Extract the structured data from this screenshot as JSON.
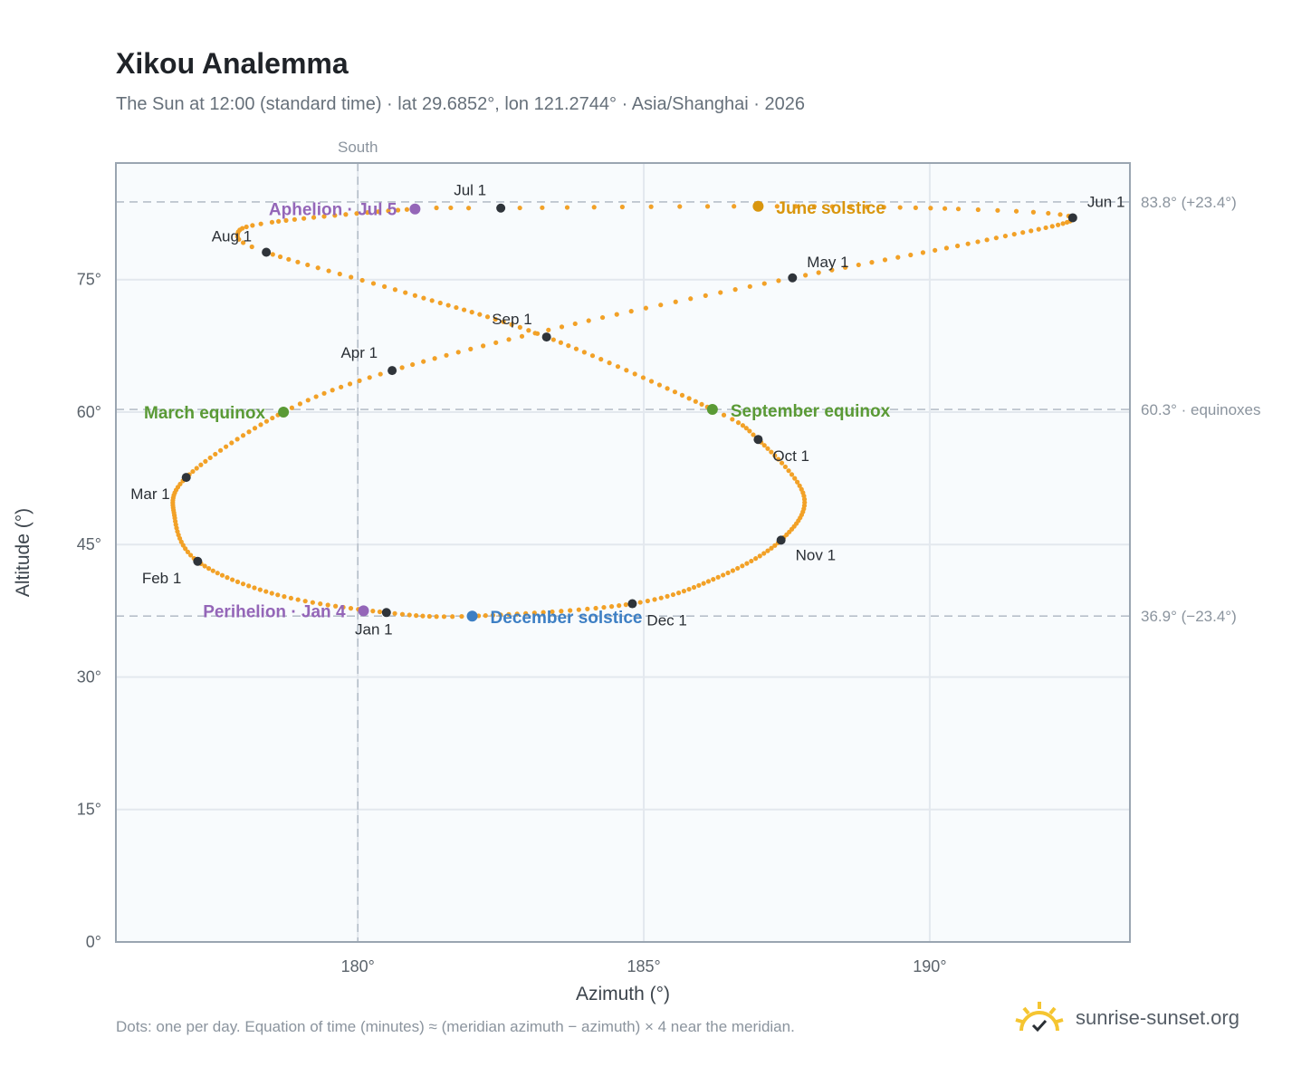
{
  "header": {
    "title": "Xikou Analemma",
    "subtitle": "The Sun at 12:00 (standard time) · lat 29.6852°, lon 121.2744° · Asia/Shanghai · 2026"
  },
  "footer": {
    "note": "Dots: one per day. Equation of time (minutes) ≈ (meridian azimuth − azimuth) × 4 near the meridian.",
    "brand": "sunrise-sunset.org"
  },
  "colors": {
    "curve": "#f2a127",
    "month_marker": "#2f343a",
    "march_sept": "#5a9a35",
    "june": "#d9960e",
    "december": "#3d7fc4",
    "apsis": "#9466b8",
    "plot_bg": "#f8fbfd",
    "grid": "#e3e8ee",
    "frame": "#9aa5b1"
  },
  "chart_data": {
    "type": "scatter",
    "title": "Xikou Analemma",
    "xlabel": "Azimuth (°)",
    "ylabel": "Altitude (°)",
    "xlim": [
      175.77,
      193.5
    ],
    "ylim": [
      0,
      88.2
    ],
    "x_ticks": [
      180,
      185,
      190
    ],
    "x_tick_labels": [
      "180°",
      "185°",
      "190°"
    ],
    "y_ticks": [
      0,
      15,
      30,
      45,
      60,
      75
    ],
    "y_tick_labels": [
      "0°",
      "15°",
      "30°",
      "45°",
      "60°",
      "75°"
    ],
    "grid": true,
    "meridian": {
      "azimuth": 180,
      "label": "South"
    },
    "reference_lines": [
      {
        "altitude": 83.8,
        "label": "83.8° (+23.4°)"
      },
      {
        "altitude": 60.3,
        "label": "60.3° · equinoxes"
      },
      {
        "altitude": 36.9,
        "label": "36.9° (−23.4°)"
      }
    ],
    "month_markers": [
      {
        "label": "Jan 1",
        "az": 180.5,
        "alt": 37.3
      },
      {
        "label": "Feb 1",
        "az": 177.2,
        "alt": 43.1
      },
      {
        "label": "Mar 1",
        "az": 177.0,
        "alt": 52.6
      },
      {
        "label": "Apr 1",
        "az": 180.6,
        "alt": 64.7
      },
      {
        "label": "May 1",
        "az": 187.6,
        "alt": 75.2
      },
      {
        "label": "Jun 1",
        "az": 192.5,
        "alt": 82.0
      },
      {
        "label": "Jul 1",
        "az": 182.5,
        "alt": 83.1
      },
      {
        "label": "Aug 1",
        "az": 178.4,
        "alt": 78.1
      },
      {
        "label": "Sep 1",
        "az": 183.3,
        "alt": 68.5
      },
      {
        "label": "Oct 1",
        "az": 187.0,
        "alt": 56.9
      },
      {
        "label": "Nov 1",
        "az": 187.4,
        "alt": 45.5
      },
      {
        "label": "Dec 1",
        "az": 184.8,
        "alt": 38.3
      }
    ],
    "events": [
      {
        "label": "March equinox",
        "az": 178.7,
        "alt": 60.0,
        "color": "#5a9a35"
      },
      {
        "label": "June solstice",
        "az": 187.0,
        "alt": 83.3,
        "color": "#d9960e"
      },
      {
        "label": "September equinox",
        "az": 186.2,
        "alt": 60.3,
        "color": "#5a9a35"
      },
      {
        "label": "December solstice",
        "az": 182.0,
        "alt": 36.9,
        "color": "#3d7fc4"
      },
      {
        "label": "Perihelion · Jan 4",
        "az": 180.1,
        "alt": 37.5,
        "color": "#9466b8"
      },
      {
        "label": "Aphelion · Jul 5",
        "az": 181.0,
        "alt": 83.0,
        "color": "#9466b8"
      }
    ],
    "curve_keypoints": [
      {
        "day": 0,
        "az": 180.5,
        "alt": 37.3
      },
      {
        "day": 15,
        "az": 178.6,
        "alt": 39.3
      },
      {
        "day": 31,
        "az": 177.2,
        "alt": 43.1
      },
      {
        "day": 44,
        "az": 176.8,
        "alt": 48.0
      },
      {
        "day": 59,
        "az": 177.0,
        "alt": 52.6
      },
      {
        "day": 78,
        "az": 178.7,
        "alt": 60.0
      },
      {
        "day": 90,
        "az": 180.6,
        "alt": 64.7
      },
      {
        "day": 105,
        "az": 183.8,
        "alt": 70.0
      },
      {
        "day": 120,
        "az": 187.6,
        "alt": 75.2
      },
      {
        "day": 136,
        "az": 191.0,
        "alt": 79.5
      },
      {
        "day": 151,
        "az": 192.5,
        "alt": 82.0
      },
      {
        "day": 159,
        "az": 190.5,
        "alt": 83.0
      },
      {
        "day": 171,
        "az": 187.0,
        "alt": 83.3
      },
      {
        "day": 181,
        "az": 182.5,
        "alt": 83.1
      },
      {
        "day": 185,
        "az": 181.0,
        "alt": 83.0
      },
      {
        "day": 200,
        "az": 178.5,
        "alt": 81.5
      },
      {
        "day": 207,
        "az": 177.9,
        "alt": 80.2
      },
      {
        "day": 212,
        "az": 178.4,
        "alt": 78.1
      },
      {
        "day": 227,
        "az": 181.0,
        "alt": 73.2
      },
      {
        "day": 243,
        "az": 183.3,
        "alt": 68.5
      },
      {
        "day": 265,
        "az": 186.2,
        "alt": 60.3
      },
      {
        "day": 273,
        "az": 187.0,
        "alt": 56.9
      },
      {
        "day": 289,
        "az": 187.8,
        "alt": 50.5
      },
      {
        "day": 304,
        "az": 187.4,
        "alt": 45.5
      },
      {
        "day": 319,
        "az": 186.3,
        "alt": 41.3
      },
      {
        "day": 334,
        "az": 184.8,
        "alt": 38.3
      },
      {
        "day": 354,
        "az": 182.0,
        "alt": 36.9
      },
      {
        "day": 365,
        "az": 180.5,
        "alt": 37.3
      }
    ]
  }
}
